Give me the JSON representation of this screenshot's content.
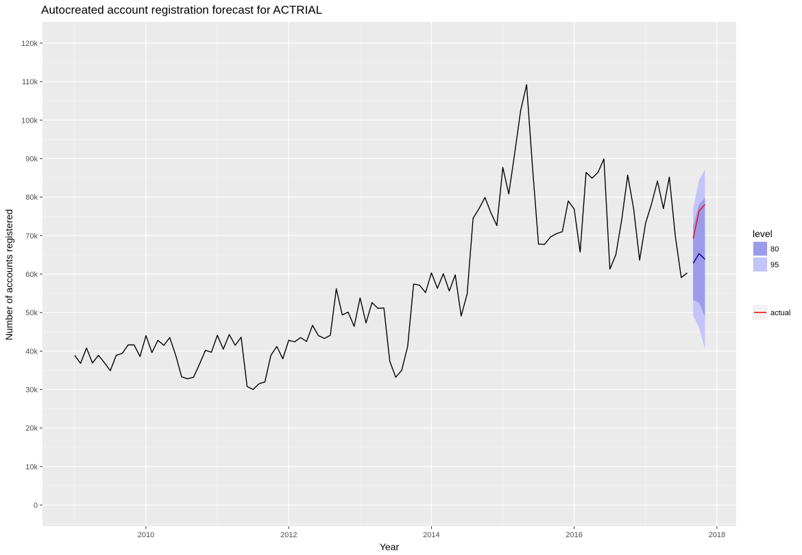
{
  "chart_data": {
    "type": "line",
    "title": "Autocreated account registration forecast for ACTRIAL",
    "xlabel": "Year",
    "ylabel": "Number of accounts registered",
    "xlim": [
      2008.55,
      2018.27
    ],
    "ylim": [
      -5500,
      125500
    ],
    "x_ticks": [
      2010,
      2012,
      2014,
      2016,
      2018
    ],
    "x_tick_labels": [
      "2010",
      "2012",
      "2014",
      "2016",
      "2018"
    ],
    "y_ticks": [
      0,
      10000,
      20000,
      30000,
      40000,
      50000,
      60000,
      70000,
      80000,
      90000,
      100000,
      110000,
      120000
    ],
    "y_tick_labels": [
      "0",
      "10k",
      "20k",
      "30k",
      "40k",
      "50k",
      "60k",
      "70k",
      "80k",
      "90k",
      "100k",
      "110k",
      "120k"
    ],
    "grid": true,
    "series": [
      {
        "role": "history",
        "color": "#000000",
        "start": 2009.0,
        "step": 0.0833333,
        "values": [
          38900,
          36800,
          40800,
          36900,
          38900,
          37000,
          34900,
          38900,
          39400,
          41600,
          41600,
          38600,
          44000,
          39600,
          42800,
          41500,
          43500,
          38900,
          33300,
          32800,
          33200,
          36600,
          40200,
          39700,
          44100,
          40500,
          44300,
          41500,
          43600,
          30800,
          30000,
          31500,
          32000,
          38900,
          41200,
          38000,
          42800,
          42400,
          43500,
          42500,
          46700,
          44000,
          43300,
          44100,
          56200,
          49400,
          50100,
          46400,
          53800,
          47300,
          52600,
          51100,
          51200,
          37300,
          33200,
          35000,
          41200,
          57400,
          57100,
          55200,
          60300,
          56300,
          60100,
          55600,
          59800,
          49100,
          54800,
          74500,
          77000,
          79900,
          75900,
          72600,
          87700,
          80800,
          91400,
          102500,
          109200,
          87600,
          67800,
          67700,
          69600,
          70500,
          71000,
          79000,
          76900,
          65700,
          86400,
          84900,
          86400,
          89900,
          61300,
          65000,
          74200,
          85700,
          76900,
          63600,
          73200,
          78200,
          84200,
          77000,
          85200,
          69900,
          59100,
          60300
        ]
      },
      {
        "name": "actual",
        "role": "actual",
        "color": "#ff0000",
        "start": 2017.667,
        "step": 0.0833333,
        "values": [
          69200,
          76400,
          78100
        ]
      },
      {
        "role": "forecast",
        "color": "#00008b",
        "start": 2017.667,
        "step": 0.0833333,
        "values": [
          62800,
          65300,
          63800
        ]
      }
    ],
    "intervals": [
      {
        "level": "80",
        "color": "#9b9ce9",
        "x": [
          2017.667,
          2017.75,
          2017.833
        ],
        "lower": [
          53300,
          52600,
          48900
        ],
        "upper": [
          72600,
          78100,
          79800
        ]
      },
      {
        "level": "95",
        "color": "#c2c4fa",
        "x": [
          2017.667,
          2017.75,
          2017.833
        ],
        "lower": [
          49200,
          46100,
          40500
        ],
        "upper": [
          77100,
          84400,
          87200
        ]
      }
    ],
    "legend": {
      "title": "level",
      "fill_entries": [
        {
          "label": "80",
          "color": "#9b9ce9"
        },
        {
          "label": "95",
          "color": "#c2c4fa"
        }
      ],
      "line_entries": [
        {
          "label": "actual",
          "color": "#ff0000"
        }
      ],
      "placement": "right"
    },
    "colors": {
      "panel": "#ebebeb",
      "grid_major": "#ffffff",
      "grid_minor": "#f5f5f5"
    }
  }
}
